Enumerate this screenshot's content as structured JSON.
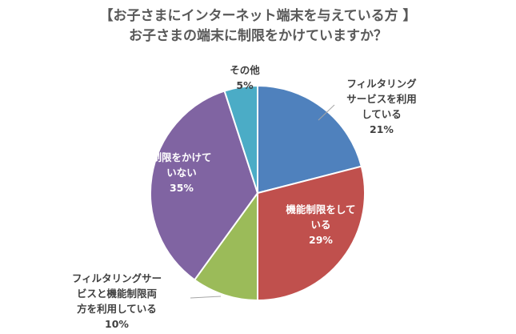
{
  "chart_data": {
    "type": "pie",
    "title": [
      "【お子さまにインターネット端末を与えている方 】",
      "お子さまの端末に制限をかけていますか？"
    ],
    "slices": [
      {
        "label": [
          "フィルタリング",
          "サービスを利用",
          "している"
        ],
        "value": 21,
        "value_label": "21%",
        "color": "#4f81bd"
      },
      {
        "label": [
          "機能制限をして",
          "いる"
        ],
        "value": 29,
        "value_label": "29%",
        "color": "#c0504d"
      },
      {
        "label": [
          "フィルタリングサー",
          "ビスと機能制限両",
          "方を利用している"
        ],
        "value": 10,
        "value_label": "10%",
        "color": "#9bbb59"
      },
      {
        "label": [
          "制限をかけて",
          "いない"
        ],
        "value": 35,
        "value_label": "35%",
        "color": "#8064a2"
      },
      {
        "label": [
          "その他"
        ],
        "value": 5,
        "value_label": "5%",
        "color": "#4bacc6"
      }
    ],
    "legend": "none",
    "start_angle": "12 o'clock",
    "direction": "clockwise"
  }
}
